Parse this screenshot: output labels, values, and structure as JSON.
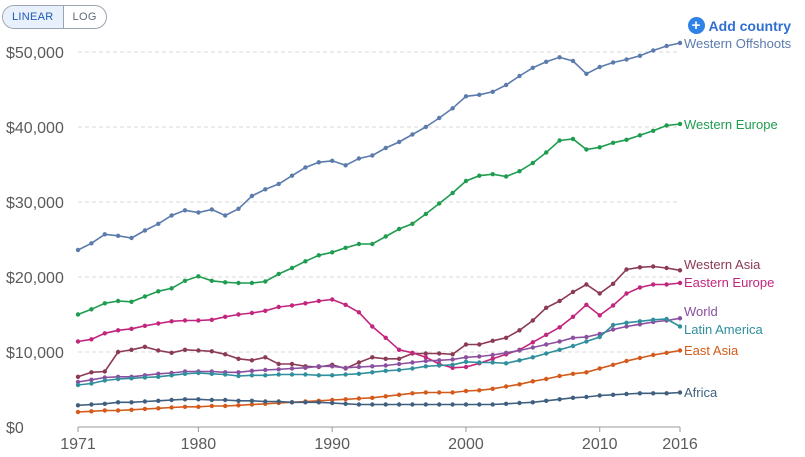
{
  "controls": {
    "linear_label": "LINEAR",
    "log_label": "LOG",
    "add_country_label": "Add country",
    "add_icon": "plus-circle-icon",
    "accent": "#2f83e6"
  },
  "chart_data": {
    "type": "line",
    "scale": "linear",
    "xlim": [
      1971,
      2016
    ],
    "ylim": [
      0,
      50000
    ],
    "x_ticks": [
      1971,
      1980,
      1990,
      2000,
      2010,
      2016
    ],
    "x_tick_labels": [
      "1971",
      "1980",
      "1990",
      "2000",
      "2010",
      "2016"
    ],
    "y_ticks": [
      0,
      10000,
      20000,
      30000,
      40000,
      50000
    ],
    "y_tick_labels": [
      "$0",
      "$10,000",
      "$20,000",
      "$30,000",
      "$40,000",
      "$50,000"
    ],
    "grid": "horizontal dashed",
    "legend": "line-end labels",
    "x": [
      1971,
      1972,
      1973,
      1974,
      1975,
      1976,
      1977,
      1978,
      1979,
      1980,
      1981,
      1982,
      1983,
      1984,
      1985,
      1986,
      1987,
      1988,
      1989,
      1990,
      1991,
      1992,
      1993,
      1994,
      1995,
      1996,
      1997,
      1998,
      1999,
      2000,
      2001,
      2002,
      2003,
      2004,
      2005,
      2006,
      2007,
      2008,
      2009,
      2010,
      2011,
      2012,
      2013,
      2014,
      2015,
      2016
    ],
    "series": [
      {
        "name": "Western Offshoots",
        "color": "#5b7bad",
        "values": [
          23600,
          24500,
          25700,
          25500,
          25200,
          26200,
          27100,
          28200,
          28900,
          28600,
          29000,
          28200,
          29100,
          30800,
          31700,
          32400,
          33500,
          34600,
          35300,
          35500,
          34900,
          35800,
          36200,
          37200,
          38000,
          39000,
          40000,
          41200,
          42500,
          44100,
          44300,
          44700,
          45600,
          46800,
          47900,
          48700,
          49300,
          48800,
          47100,
          48000,
          48600,
          49000,
          49500,
          50200,
          50800,
          51200
        ]
      },
      {
        "name": "Western Europe",
        "color": "#1e9c4f",
        "values": [
          15000,
          15700,
          16500,
          16800,
          16700,
          17400,
          18100,
          18500,
          19500,
          20100,
          19500,
          19300,
          19200,
          19200,
          19400,
          20400,
          21200,
          22100,
          22900,
          23300,
          23900,
          24400,
          24400,
          25400,
          26400,
          27100,
          28400,
          29800,
          31200,
          32800,
          33500,
          33700,
          33400,
          34100,
          35200,
          36600,
          38200,
          38400,
          37000,
          37300,
          37900,
          38300,
          38900,
          39500,
          40200,
          40400
        ]
      },
      {
        "name": "Western Asia",
        "color": "#8b3a55",
        "values": [
          6700,
          7300,
          7400,
          10000,
          10300,
          10700,
          10200,
          9900,
          10300,
          10200,
          10100,
          9700,
          9100,
          8900,
          9300,
          8400,
          8400,
          8100,
          8000,
          8300,
          7800,
          8600,
          9300,
          9100,
          9100,
          9800,
          9800,
          9800,
          9700,
          11000,
          11000,
          11500,
          11900,
          12900,
          14200,
          15900,
          16800,
          18000,
          19000,
          17800,
          19100,
          21000,
          21300,
          21400,
          21200,
          20900
        ]
      },
      {
        "name": "Eastern Europe",
        "color": "#c2257d",
        "values": [
          11400,
          11700,
          12500,
          12900,
          13100,
          13500,
          13800,
          14100,
          14200,
          14200,
          14300,
          14700,
          15000,
          15200,
          15500,
          16000,
          16200,
          16500,
          16800,
          17000,
          16300,
          15300,
          13400,
          11900,
          10300,
          9900,
          9300,
          8400,
          7900,
          8000,
          8500,
          9100,
          9700,
          10300,
          11300,
          12300,
          13300,
          14700,
          16300,
          14900,
          16200,
          17800,
          18600,
          19000,
          19000,
          19200
        ]
      },
      {
        "name": "World",
        "color": "#8a4f9e",
        "values": [
          6000,
          6300,
          6600,
          6700,
          6700,
          6900,
          7100,
          7200,
          7400,
          7400,
          7400,
          7300,
          7300,
          7500,
          7600,
          7700,
          7800,
          7900,
          8100,
          8100,
          7900,
          8000,
          8100,
          8200,
          8400,
          8600,
          8800,
          8900,
          9000,
          9300,
          9400,
          9600,
          9900,
          10200,
          10600,
          11000,
          11400,
          11900,
          12000,
          12400,
          13000,
          13400,
          13700,
          14000,
          14200,
          14500
        ]
      },
      {
        "name": "Latin America",
        "color": "#2f8f9d",
        "values": [
          5600,
          5800,
          6200,
          6400,
          6500,
          6600,
          6700,
          6900,
          7100,
          7200,
          7100,
          7000,
          6800,
          6900,
          6900,
          7000,
          7000,
          7000,
          6900,
          6900,
          7000,
          7100,
          7300,
          7500,
          7600,
          7800,
          8100,
          8200,
          8300,
          8700,
          8600,
          8600,
          8500,
          8900,
          9300,
          9800,
          10300,
          10800,
          11400,
          12000,
          13600,
          13900,
          14100,
          14300,
          14400,
          13400
        ]
      },
      {
        "name": "East Asia",
        "color": "#d35a1a",
        "values": [
          2000,
          2100,
          2200,
          2200,
          2300,
          2400,
          2500,
          2600,
          2700,
          2700,
          2800,
          2800,
          2900,
          3000,
          3100,
          3200,
          3300,
          3400,
          3500,
          3600,
          3700,
          3800,
          3900,
          4100,
          4300,
          4500,
          4600,
          4600,
          4600,
          4800,
          4900,
          5100,
          5400,
          5700,
          6100,
          6400,
          6800,
          7100,
          7300,
          7800,
          8300,
          8800,
          9200,
          9600,
          9900,
          10200
        ]
      },
      {
        "name": "Africa",
        "color": "#3f5f7f",
        "values": [
          2900,
          3000,
          3100,
          3300,
          3300,
          3400,
          3500,
          3600,
          3700,
          3700,
          3600,
          3600,
          3500,
          3500,
          3400,
          3400,
          3300,
          3300,
          3300,
          3200,
          3100,
          3000,
          3000,
          3000,
          3000,
          3000,
          3000,
          3000,
          3000,
          3000,
          3000,
          3000,
          3100,
          3200,
          3300,
          3500,
          3700,
          3900,
          4000,
          4200,
          4300,
          4400,
          4500,
          4500,
          4500,
          4600
        ]
      }
    ]
  }
}
